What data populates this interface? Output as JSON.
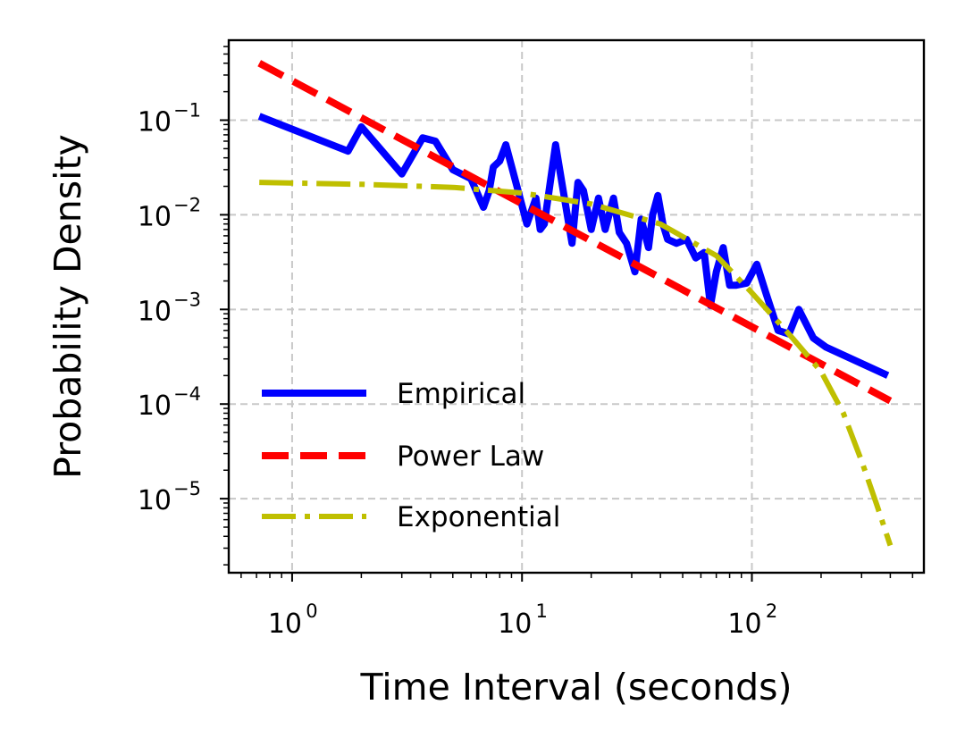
{
  "chart_data": {
    "type": "line",
    "title": "",
    "xlabel": "Time Interval (seconds)",
    "ylabel": "Probability Density",
    "xscale": "log",
    "yscale": "log",
    "xlim": [
      0.53,
      560
    ],
    "ylim": [
      1.65e-06,
      0.7
    ],
    "grid": true,
    "legend_position": "lower-left",
    "x_ticks": [
      {
        "value": 1,
        "base": "10",
        "exp": "0"
      },
      {
        "value": 10,
        "base": "10",
        "exp": "1"
      },
      {
        "value": 100,
        "base": "10",
        "exp": "2"
      }
    ],
    "y_ticks": [
      {
        "value": 0.1,
        "base": "10",
        "exp": "−1"
      },
      {
        "value": 0.01,
        "base": "10",
        "exp": "−2"
      },
      {
        "value": 0.001,
        "base": "10",
        "exp": "−3"
      },
      {
        "value": 0.0001,
        "base": "10",
        "exp": "−4"
      },
      {
        "value": 1e-05,
        "base": "10",
        "exp": "−5"
      }
    ],
    "series": [
      {
        "name": "Empirical",
        "color": "#0000ff",
        "style": "solid",
        "x": [
          0.72,
          1.75,
          2.0,
          3.0,
          3.7,
          4.2,
          5.0,
          6.0,
          6.8,
          7.2,
          7.5,
          8.0,
          8.5,
          9.5,
          10.5,
          11.5,
          12.0,
          12.5,
          13.2,
          14.0,
          15.0,
          16.5,
          17.5,
          18.5,
          20.0,
          21.5,
          23.0,
          25.0,
          26.5,
          28.5,
          31.0,
          33.0,
          35.5,
          37.0,
          39.0,
          41.0,
          43.0,
          47.0,
          52.0,
          57.0,
          62.0,
          66.0,
          70.0,
          75.0,
          80.0,
          85.0,
          95.0,
          105.0,
          115.0,
          130.0,
          145.0,
          160.0,
          185.0,
          210.0,
          390.0
        ],
        "values": [
          0.11,
          0.047,
          0.085,
          0.027,
          0.065,
          0.06,
          0.03,
          0.024,
          0.012,
          0.018,
          0.032,
          0.037,
          0.055,
          0.02,
          0.008,
          0.015,
          0.007,
          0.008,
          0.02,
          0.055,
          0.02,
          0.005,
          0.022,
          0.018,
          0.007,
          0.015,
          0.007,
          0.015,
          0.0065,
          0.005,
          0.0025,
          0.009,
          0.0045,
          0.01,
          0.016,
          0.008,
          0.0055,
          0.005,
          0.0055,
          0.0035,
          0.004,
          0.0011,
          0.0025,
          0.0045,
          0.0018,
          0.0018,
          0.0019,
          0.003,
          0.0015,
          0.0006,
          0.00055,
          0.001,
          0.0005,
          0.0004,
          0.0002
        ]
      },
      {
        "name": "Power Law",
        "color": "#ff0000",
        "style": "dashed",
        "x": [
          0.72,
          400
        ],
        "values": [
          0.4,
          0.000108
        ]
      },
      {
        "name": "Exponential",
        "color": "#bfbf00",
        "style": "dashdot",
        "x": [
          0.72,
          2.0,
          5.0,
          10.0,
          20.0,
          40.0,
          70.0,
          100.0,
          150.0,
          200.0,
          250.0,
          300.0,
          350.0,
          400.0
        ],
        "values": [
          0.022,
          0.021,
          0.0195,
          0.017,
          0.013,
          0.008,
          0.0037,
          0.0015,
          0.0005,
          0.00022,
          8e-05,
          2.5e-05,
          8.5e-06,
          3.2e-06
        ]
      }
    ]
  }
}
